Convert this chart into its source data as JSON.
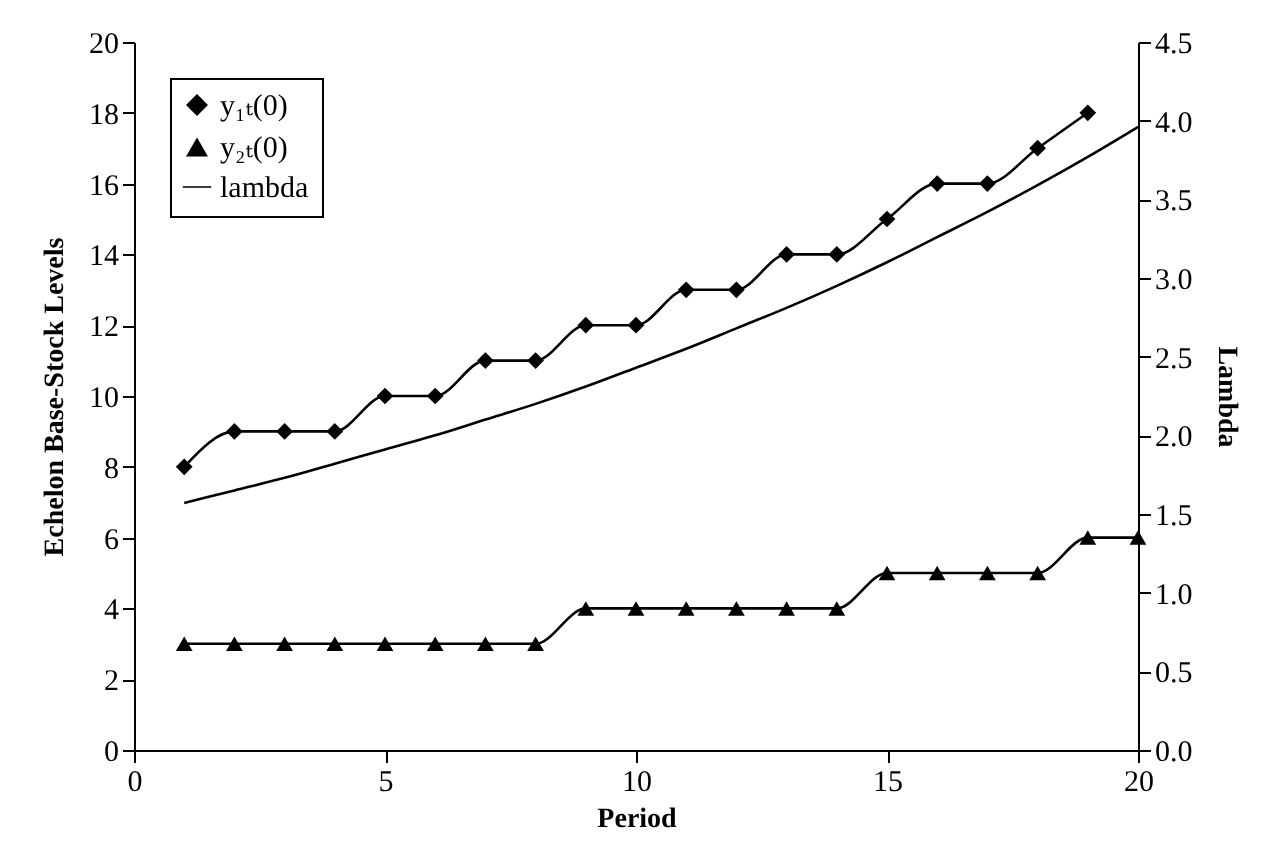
{
  "chart_data": {
    "type": "line",
    "xlabel": "Period",
    "ylabel": "Echelon Base-Stock Levels",
    "y2label": "Lambda",
    "x": [
      1,
      2,
      3,
      4,
      5,
      6,
      7,
      8,
      9,
      10,
      11,
      12,
      13,
      14,
      15,
      16,
      17,
      18,
      19,
      20
    ],
    "series": [
      {
        "name": "y₁ₜ(0)",
        "color": "#000000",
        "marker": "diamond",
        "values": [
          8,
          9,
          9,
          9,
          10,
          10,
          11,
          11,
          12,
          12,
          13,
          13,
          14,
          14,
          15,
          16,
          16,
          17,
          18,
          null
        ]
      },
      {
        "name": "y₂ₜ(0)",
        "color": "#000000",
        "marker": "triangle",
        "values": [
          3,
          3,
          3,
          3,
          3,
          3,
          3,
          3,
          4,
          4,
          4,
          4,
          4,
          4,
          5,
          5,
          5,
          5,
          6,
          6
        ]
      },
      {
        "name": "lambda",
        "color": "#000000",
        "marker": "none",
        "axis": "y2",
        "values": [
          1.57,
          1.65,
          1.73,
          1.82,
          1.91,
          2.0,
          2.1,
          2.2,
          2.31,
          2.43,
          2.55,
          2.68,
          2.81,
          2.95,
          3.1,
          3.26,
          3.42,
          3.59,
          3.77,
          3.96
        ]
      }
    ],
    "xlim": [
      0,
      20
    ],
    "xticks": [
      0,
      5,
      10,
      15,
      20
    ],
    "ylim": [
      0,
      20
    ],
    "yticks": [
      0,
      2,
      4,
      6,
      8,
      10,
      12,
      14,
      16,
      18,
      20
    ],
    "y2lim": [
      0,
      4.5
    ],
    "y2ticks": [
      {
        "value": 0,
        "label": "0.0"
      },
      {
        "value": 0.5,
        "label": "0.5"
      },
      {
        "value": 1,
        "label": "1.0"
      },
      {
        "value": 1.5,
        "label": "1.5"
      },
      {
        "value": 2,
        "label": "2.0"
      },
      {
        "value": 2.5,
        "label": "2.5"
      },
      {
        "value": 3,
        "label": "3.0"
      },
      {
        "value": 3.5,
        "label": "3.5"
      },
      {
        "value": 4,
        "label": "4.0"
      },
      {
        "value": 4.5,
        "label": "4.5"
      }
    ],
    "grid": false,
    "legend": "top left",
    "line_style": "solid"
  }
}
